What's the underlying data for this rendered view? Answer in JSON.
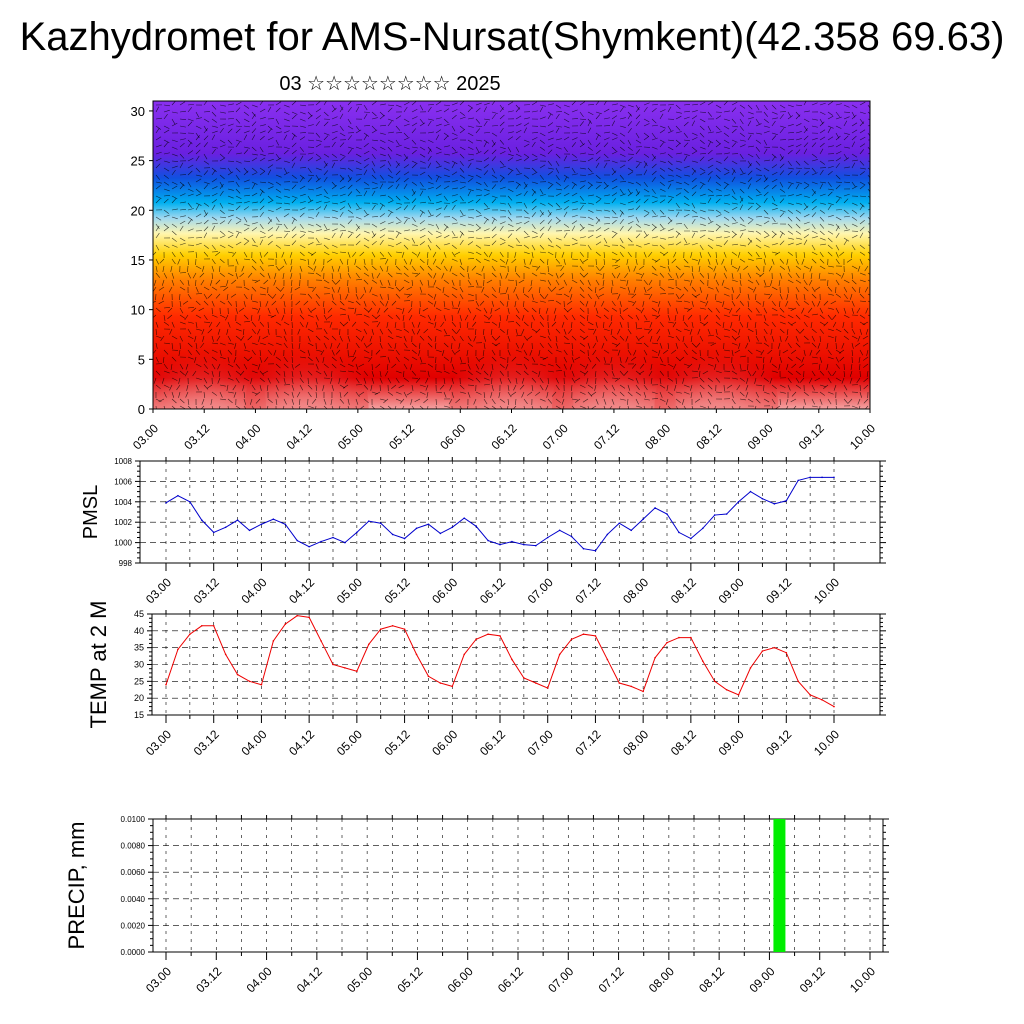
{
  "title": "Kazhydromet for AMS-Nursat(Shymkent)(42.358 69.63)",
  "subtitle": "03 ☆☆☆☆☆☆☆☆ 2025",
  "x_tick_labels": [
    "03.00",
    "03.12",
    "04.00",
    "04.12",
    "05.00",
    "05.12",
    "06.00",
    "06.12",
    "07.00",
    "07.12",
    "08.00",
    "08.12",
    "09.00",
    "09.12",
    "10.00"
  ],
  "chart_data": [
    {
      "type": "heatmap",
      "title": "",
      "xlabel": "",
      "ylabel": "",
      "ylim": [
        0,
        31
      ],
      "y_ticks": [
        0,
        5,
        10,
        15,
        20,
        25,
        30
      ],
      "x_ticks": [
        "03.00",
        "03.12",
        "04.00",
        "04.12",
        "05.00",
        "05.12",
        "06.00",
        "06.12",
        "07.00",
        "07.12",
        "08.00",
        "08.12",
        "09.00",
        "09.12",
        "10.00"
      ],
      "color_bands_bottom_to_top": [
        "#f6a3a3",
        "#e00000",
        "#ff2a00",
        "#ff8000",
        "#ffd000",
        "#fff6b0",
        "#9fd8f0",
        "#00b0f0",
        "#1050e0",
        "#6a20e0",
        "#8a30f0"
      ],
      "warm_columns_at": [
        "03.12",
        "04.12",
        "06.12",
        "07.12",
        "08.12"
      ]
    },
    {
      "type": "line",
      "ylabel": "PMSL",
      "ylim": [
        998,
        1008
      ],
      "y_ticks": [
        998,
        1000,
        1002,
        1004,
        1006,
        1008
      ],
      "color": "#0000cc",
      "series": [
        {
          "values": [
            1003.9,
            1004.6,
            1004.0,
            1002.2,
            1001.0,
            1001.5,
            1002.2,
            1001.2,
            1001.8,
            1002.3,
            1001.8,
            1000.2,
            999.6,
            1000.1,
            1000.5,
            1000.0,
            1001.0,
            1002.1,
            1001.9,
            1000.8,
            1000.4,
            1001.4,
            1001.8,
            1000.9,
            1001.5,
            1002.4,
            1001.6,
            1000.2,
            999.8,
            1000.1,
            999.8,
            999.7,
            1000.5,
            1001.2,
            1000.6,
            999.4,
            999.2,
            1000.8,
            1001.9,
            1001.2,
            1002.3,
            1003.4,
            1002.8,
            1001.0,
            1000.4,
            1001.4,
            1002.7,
            1002.8,
            1004.0,
            1005.0,
            1004.3,
            1003.8,
            1004.1,
            1006.1,
            1006.4,
            1006.4,
            1006.4
          ]
        }
      ]
    },
    {
      "type": "line",
      "ylabel": "TEMP at 2 M",
      "ylim": [
        15,
        45
      ],
      "y_ticks": [
        15,
        20,
        25,
        30,
        35,
        40,
        45
      ],
      "color": "#ee0000",
      "series": [
        {
          "values": [
            24.0,
            34.5,
            39.0,
            41.5,
            41.5,
            33.0,
            27.0,
            25.0,
            24.0,
            37.0,
            42.0,
            44.5,
            44.0,
            37.0,
            30.0,
            29.0,
            28.0,
            36.0,
            40.5,
            41.5,
            40.5,
            33.0,
            26.5,
            24.5,
            23.5,
            33.0,
            37.5,
            39.0,
            38.5,
            31.5,
            26.0,
            24.5,
            23.0,
            33.0,
            37.5,
            39.0,
            38.5,
            31.5,
            24.5,
            23.5,
            22.0,
            32.0,
            36.5,
            38.0,
            38.0,
            31.0,
            25.0,
            22.5,
            21.0,
            29.0,
            34.0,
            35.0,
            33.5,
            25.0,
            21.0,
            19.5,
            17.5
          ]
        }
      ]
    },
    {
      "type": "bar",
      "ylabel": "PRECIP, mm",
      "ylim": [
        0,
        0.01
      ],
      "y_ticks": [
        "0.0000",
        "0.0020",
        "0.0040",
        "0.0060",
        "0.0080",
        "0.0100"
      ],
      "color": "#00ee00",
      "bars": [
        {
          "x": "09.00",
          "value": 0.01
        }
      ]
    }
  ]
}
